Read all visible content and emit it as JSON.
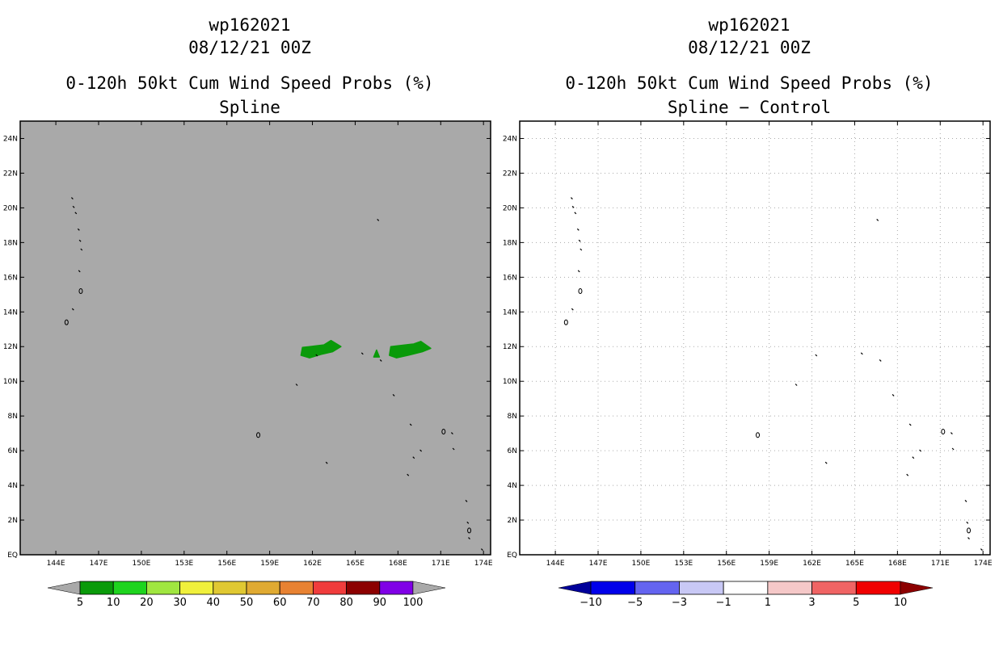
{
  "colors": {
    "left_background": "#a9a9a9",
    "right_background": "#ffffff",
    "prob_patch": "#0a9a0a",
    "frame": "#000000",
    "grid": "#aaaaaa"
  },
  "left_panel": {
    "storm_id": "wp162021",
    "datetime": "08/12/21 00Z",
    "product": "0-120h 50kt Cum Wind Speed Probs (%)",
    "subtitle": "Spline",
    "colorbar": {
      "colors": [
        "#0a9a0a",
        "#1ed41e",
        "#a0e640",
        "#f0f03c",
        "#e0c832",
        "#e0aa32",
        "#e88232",
        "#f03c3c",
        "#8c0000",
        "#8000e6"
      ],
      "labels": [
        "5",
        "10",
        "20",
        "30",
        "40",
        "50",
        "60",
        "70",
        "80",
        "90",
        "100"
      ],
      "under_color": "#a9a9a9",
      "over_color": "#a9a9a9"
    }
  },
  "right_panel": {
    "storm_id": "wp162021",
    "datetime": "08/12/21 00Z",
    "product": "0-120h 50kt Cum Wind Speed Probs (%)",
    "subtitle": "Spline − Control",
    "colorbar": {
      "colors": [
        "#0000ea",
        "#6464f0",
        "#c8c8f5",
        "#ffffff",
        "#f5c8c8",
        "#f06464",
        "#f00000"
      ],
      "labels": [
        "−10",
        "−5",
        "−3",
        "−1",
        "1",
        "3",
        "5",
        "10"
      ],
      "under_color": "#00009a",
      "over_color": "#8c0000"
    }
  },
  "map": {
    "lon_labels": [
      "144E",
      "147E",
      "150E",
      "153E",
      "156E",
      "159E",
      "162E",
      "165E",
      "168E",
      "171E",
      "174E"
    ],
    "lat_labels": [
      "EQ",
      "2N",
      "4N",
      "6N",
      "8N",
      "10N",
      "12N",
      "14N",
      "16N",
      "18N",
      "20N",
      "22N",
      "24N"
    ],
    "lon_range": [
      141.5,
      174.5
    ],
    "lat_range": [
      0,
      25
    ],
    "lon_ticks": [
      144,
      147,
      150,
      153,
      156,
      159,
      162,
      165,
      168,
      171,
      174
    ],
    "lat_ticks": [
      0,
      2,
      4,
      6,
      8,
      10,
      12,
      14,
      16,
      18,
      20,
      22,
      24
    ],
    "islands": [
      {
        "name": "Farallon de Pajaros",
        "lon": 145.15,
        "lat": 20.55
      },
      {
        "name": "Maug",
        "lon": 145.25,
        "lat": 20.05
      },
      {
        "name": "Asuncion",
        "lon": 145.4,
        "lat": 19.7
      },
      {
        "name": "Agrihan",
        "lon": 145.6,
        "lat": 18.75
      },
      {
        "name": "Pagan",
        "lon": 145.7,
        "lat": 18.1
      },
      {
        "name": "Alamagan",
        "lon": 145.8,
        "lat": 17.6
      },
      {
        "name": "Anatahan",
        "lon": 145.65,
        "lat": 16.35
      },
      {
        "name": "Saipan",
        "lon": 145.75,
        "lat": 15.2
      },
      {
        "name": "Rota",
        "lon": 145.2,
        "lat": 14.15
      },
      {
        "name": "Guam",
        "lon": 144.75,
        "lat": 13.4
      },
      {
        "name": "Wake",
        "lon": 166.6,
        "lat": 19.3
      },
      {
        "name": "Pohnpei",
        "lon": 158.2,
        "lat": 6.9
      },
      {
        "name": "Enewetak",
        "lon": 162.3,
        "lat": 11.5
      },
      {
        "name": "Ujelang",
        "lon": 160.9,
        "lat": 9.8
      },
      {
        "name": "Bikini",
        "lon": 165.5,
        "lat": 11.6
      },
      {
        "name": "Rongelap",
        "lon": 166.8,
        "lat": 11.2
      },
      {
        "name": "Kwajalein",
        "lon": 167.7,
        "lat": 9.2
      },
      {
        "name": "Ailinglaplap",
        "lon": 168.9,
        "lat": 7.5
      },
      {
        "name": "Jaluit",
        "lon": 169.6,
        "lat": 6.0
      },
      {
        "name": "Kili",
        "lon": 169.1,
        "lat": 5.6
      },
      {
        "name": "Ebon",
        "lon": 168.7,
        "lat": 4.6
      },
      {
        "name": "Majuro",
        "lon": 171.2,
        "lat": 7.1
      },
      {
        "name": "Arno",
        "lon": 171.8,
        "lat": 7.0
      },
      {
        "name": "Mili",
        "lon": 171.9,
        "lat": 6.1
      },
      {
        "name": "Kosrae",
        "lon": 163.0,
        "lat": 5.3
      },
      {
        "name": "Butaritari",
        "lon": 172.8,
        "lat": 3.1
      },
      {
        "name": "Tarawa",
        "lon": 173.0,
        "lat": 1.4
      },
      {
        "name": "Abaiang",
        "lon": 172.9,
        "lat": 1.85
      },
      {
        "name": "Maiana",
        "lon": 173.0,
        "lat": 0.95
      },
      {
        "name": "Makin",
        "lon": 173.9,
        "lat": 0.3
      }
    ],
    "prob_regions": [
      {
        "name": "western",
        "points": [
          [
            161.2,
            11.5
          ],
          [
            161.3,
            11.95
          ],
          [
            162.8,
            12.1
          ],
          [
            163.3,
            12.35
          ],
          [
            164.0,
            12.0
          ],
          [
            163.4,
            11.7
          ],
          [
            162.6,
            11.55
          ],
          [
            161.8,
            11.35
          ]
        ]
      },
      {
        "name": "small",
        "points": [
          [
            166.3,
            11.4
          ],
          [
            166.5,
            11.8
          ],
          [
            166.7,
            11.4
          ]
        ]
      },
      {
        "name": "eastern",
        "points": [
          [
            167.4,
            11.5
          ],
          [
            167.5,
            12.0
          ],
          [
            169.1,
            12.15
          ],
          [
            169.6,
            12.3
          ],
          [
            170.3,
            11.9
          ],
          [
            169.7,
            11.7
          ],
          [
            168.7,
            11.5
          ],
          [
            167.9,
            11.35
          ]
        ]
      }
    ]
  }
}
